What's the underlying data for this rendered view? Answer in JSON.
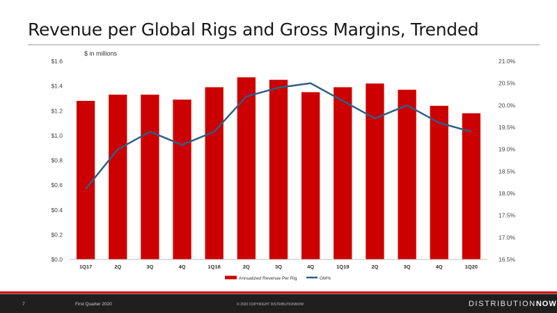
{
  "slide": {
    "title": "Revenue per Global Rigs and Gross Margins, Trended",
    "page_number": "7",
    "period_label": "First Quarter 2020",
    "copyright": "© 2020 COPYRIGHT DISTRIBUTIONNOW",
    "logo_part1": "DISTRIBUTION",
    "logo_part2": "NOW"
  },
  "colors": {
    "bar": "#cc0000",
    "line": "#2e5f86",
    "accent_red": "#d40000"
  },
  "chart_data": {
    "type": "bar",
    "units_note": "$ in millions",
    "categories": [
      "1Q17",
      "2Q",
      "3Q",
      "4Q",
      "1Q18",
      "2Q",
      "3Q",
      "4Q",
      "1Q19",
      "2Q",
      "3Q",
      "4Q",
      "1Q20"
    ],
    "series": [
      {
        "name": "Annualized Revenue Per Rig",
        "type": "bar",
        "axis": "left",
        "values": [
          1.28,
          1.33,
          1.33,
          1.29,
          1.39,
          1.47,
          1.45,
          1.35,
          1.39,
          1.42,
          1.37,
          1.24,
          1.18
        ]
      },
      {
        "name": "GM%",
        "type": "line",
        "axis": "right",
        "values": [
          18.1,
          19.0,
          19.4,
          19.1,
          19.4,
          20.2,
          20.4,
          20.5,
          20.1,
          19.7,
          20.0,
          19.6,
          19.4
        ]
      }
    ],
    "y_left": {
      "min": 0.0,
      "max": 1.6,
      "ticks": [
        0.0,
        0.2,
        0.4,
        0.6,
        0.8,
        1.0,
        1.2,
        1.4,
        1.6
      ],
      "tick_labels": [
        "$0.0",
        "$0.2",
        "$0.4",
        "$0.6",
        "$0.8",
        "$1.0",
        "$1.2",
        "$1.4",
        "$1.6"
      ]
    },
    "y_right": {
      "min": 16.5,
      "max": 21.0,
      "ticks": [
        16.5,
        17.0,
        17.5,
        18.0,
        18.5,
        19.0,
        19.5,
        20.0,
        20.5,
        21.0
      ],
      "tick_labels": [
        "16.5%",
        "17.0%",
        "17.5%",
        "18.0%",
        "18.5%",
        "19.0%",
        "19.5%",
        "20.0%",
        "20.5%",
        "21.0%"
      ]
    },
    "grid": false,
    "legend_placement": "bottom"
  }
}
